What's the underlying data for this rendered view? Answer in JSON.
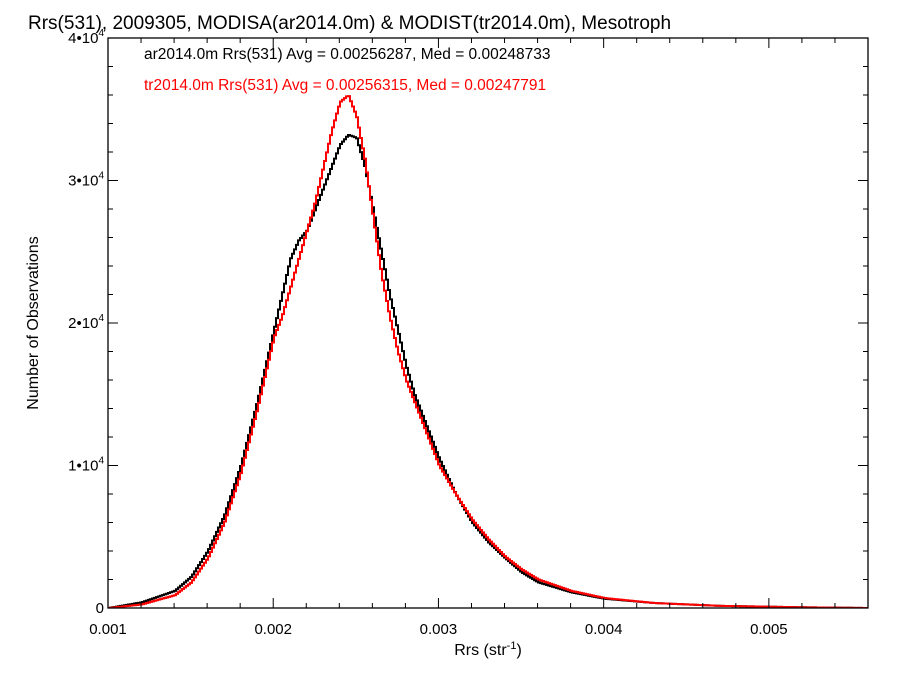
{
  "chart_data": {
    "type": "line",
    "title": "Rrs(531), 2009305, MODISA(ar2014.0m) & MODIST(tr2014.0m), Mesotroph",
    "xlabel": "Rrs (str",
    "xlabel_sup": "-1",
    "xlabel_close": ")",
    "ylabel": "Number of Observations",
    "xlim": [
      0.001,
      0.0056
    ],
    "ylim": [
      0,
      40000
    ],
    "x_ticks": [
      {
        "value": 0.001,
        "label": "0.001"
      },
      {
        "value": 0.002,
        "label": "0.002"
      },
      {
        "value": 0.003,
        "label": "0.003"
      },
      {
        "value": 0.004,
        "label": "0.004"
      },
      {
        "value": 0.005,
        "label": "0.005"
      }
    ],
    "y_ticks": [
      {
        "value": 0,
        "base": "0",
        "exp": ""
      },
      {
        "value": 10000,
        "base": "1•10",
        "exp": "4"
      },
      {
        "value": 20000,
        "base": "2•10",
        "exp": "4"
      },
      {
        "value": 30000,
        "base": "3•10",
        "exp": "4"
      },
      {
        "value": 40000,
        "base": "4•10",
        "exp": "4"
      }
    ],
    "grid": false,
    "legend_position": "top-left",
    "series": [
      {
        "name": "ar2014.0m Rrs(531) Avg = 0.00256287, Med = 0.00248733",
        "color": "#000000",
        "x": [
          0.001,
          0.0012,
          0.0014,
          0.0015,
          0.0016,
          0.0017,
          0.0018,
          0.0019,
          0.002,
          0.00205,
          0.0021,
          0.00215,
          0.0022,
          0.00225,
          0.0023,
          0.00235,
          0.0024,
          0.00245,
          0.0025,
          0.00255,
          0.0026,
          0.00265,
          0.0027,
          0.00275,
          0.0028,
          0.00285,
          0.0029,
          0.00295,
          0.003,
          0.0031,
          0.0032,
          0.0033,
          0.0034,
          0.0035,
          0.0036,
          0.0038,
          0.004,
          0.0043,
          0.0047,
          0.0052,
          0.0056
        ],
        "values": [
          0,
          400,
          1200,
          2200,
          4000,
          6500,
          10000,
          14500,
          19500,
          22000,
          24500,
          25800,
          26500,
          28000,
          29500,
          31000,
          32500,
          33200,
          33000,
          31000,
          28000,
          25000,
          22000,
          19500,
          17000,
          15000,
          13500,
          12000,
          10500,
          8000,
          6000,
          4600,
          3500,
          2500,
          1800,
          1100,
          650,
          350,
          150,
          50,
          0
        ]
      },
      {
        "name": "tr2014.0m Rrs(531) Avg = 0.00256315, Med = 0.00247791",
        "color": "#ff0000",
        "x": [
          0.001,
          0.0012,
          0.0014,
          0.0015,
          0.0016,
          0.0017,
          0.0018,
          0.0019,
          0.002,
          0.00205,
          0.0021,
          0.00215,
          0.0022,
          0.00225,
          0.0023,
          0.00235,
          0.0024,
          0.00245,
          0.0025,
          0.00255,
          0.0026,
          0.00265,
          0.0027,
          0.00275,
          0.0028,
          0.00285,
          0.0029,
          0.00295,
          0.003,
          0.0031,
          0.0032,
          0.0033,
          0.0034,
          0.0035,
          0.0036,
          0.0038,
          0.004,
          0.0043,
          0.0047,
          0.0052,
          0.0056
        ],
        "values": [
          0,
          250,
          900,
          1800,
          3500,
          6000,
          9500,
          14000,
          19000,
          20500,
          22500,
          24500,
          26500,
          28500,
          31000,
          33500,
          35500,
          36000,
          34500,
          31500,
          27500,
          23500,
          20500,
          18000,
          16000,
          14500,
          13000,
          11500,
          10000,
          8000,
          6200,
          4800,
          3600,
          2700,
          2000,
          1200,
          700,
          350,
          150,
          50,
          0
        ]
      }
    ]
  }
}
